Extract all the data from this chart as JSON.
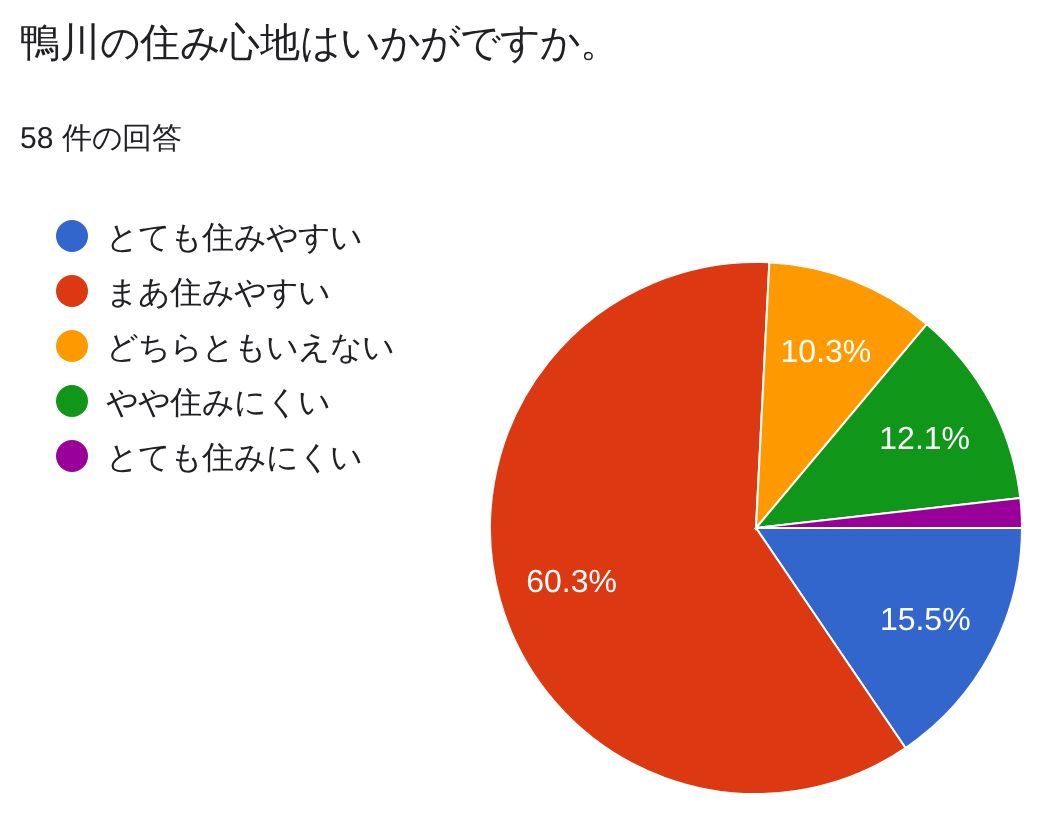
{
  "chart_data": {
    "type": "pie",
    "title": "鴨川の住み心地はいかがですか。",
    "subtitle": "58 件の回答",
    "categories": [
      "とても住みやすい",
      "まあ住みやすい",
      "どちらともいえない",
      "やや住みにくい",
      "とても住みにくい"
    ],
    "values": [
      15.5,
      60.3,
      10.3,
      12.1,
      1.8
    ],
    "colors": [
      "#3366cc",
      "#dc3912",
      "#ff9900",
      "#109618",
      "#990099"
    ],
    "value_labels": [
      "15.5%",
      "60.3%",
      "10.3%",
      "12.1%",
      null
    ],
    "legend": "left"
  }
}
